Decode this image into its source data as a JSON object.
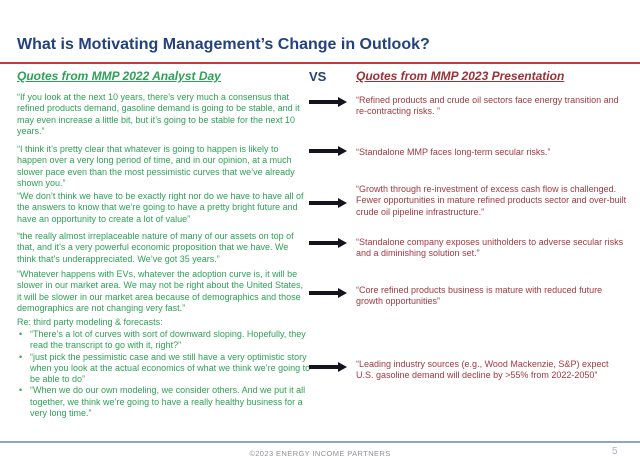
{
  "slide": {
    "title": "What is Motivating Management’s Change in Outlook?",
    "footer_text": "©2023 ENERGY INCOME PARTNERS",
    "page_number": "5"
  },
  "header": {
    "left_title": "Quotes from MMP 2022 Analyst Day",
    "vs_label": "VS",
    "right_title": "Quotes from MMP 2023 Presentation"
  },
  "left_quotes": [
    "“If you look at the next 10 years, there’s very much a consensus that refined products demand, gasoline demand is going to be stable, and it may even increase a little bit, but it’s going to be stable for the next 10 years.”",
    "“I think it’s pretty clear that whatever is going to happen is likely to happen over a very long period of time, and in our opinion, at a much slower pace even than the most pessimistic curves that we’ve already shown you.”",
    "“We don’t think we have to be exactly right nor do we have to have all of the answers to know that we’re going to have a pretty bright future and have an opportunity to create a lot of value”",
    "“the really almost irreplaceable nature of many of our assets on top of that, and it’s a very powerful economic proposition that we have. We think that’s underappreciated. We’ve got 35 years.”",
    "“Whatever happens with EVs, whatever the adoption curve is, it will be slower in our market area. We may not be right about the United States, it will be slower in our market area because of demographics and those demographics are not changing very fast.”"
  ],
  "left_section": {
    "heading": "Re: third party modeling & forecasts:",
    "bullet_glyph": "•",
    "bullets": [
      "“There’s a lot of curves with sort of downward sloping. Hopefully, they read the transcript to go with it, right?”",
      "“just pick the pessimistic case and we still have a very optimistic story when you look at the actual economics of what we think we’re going to be able to do”",
      "“When we do our own modeling, we consider others. And we put it all together, we think we’re going to have a really healthy business for a very long time.”"
    ]
  },
  "right_quotes": [
    "“Refined products and crude oil sectors face energy transition and re-contracting risks. ”",
    "“Standalone MMP faces long-term secular risks.”",
    "“Growth through re-investment of excess cash flow is challenged. Fewer opportunities in mature refined products sector and over-built crude oil pipeline infrastructure.”",
    "“Standalone company exposes unitholders to adverse secular risks and a diminishing solution set.”",
    "“Core refined products business is mature with reduced future growth opportunities”",
    "“Leading industry sources (e.g., Wood Mackenzie, S&P) expect U.S. gasoline demand will decline by >55% from 2022-2050”"
  ],
  "colors": {
    "title": "#24427E",
    "left_accent": "#2EA157",
    "right_accent": "#A33940",
    "title_rule": "#C23B34",
    "arrow": "#14141E",
    "footer_rule": "#96A3C8"
  }
}
